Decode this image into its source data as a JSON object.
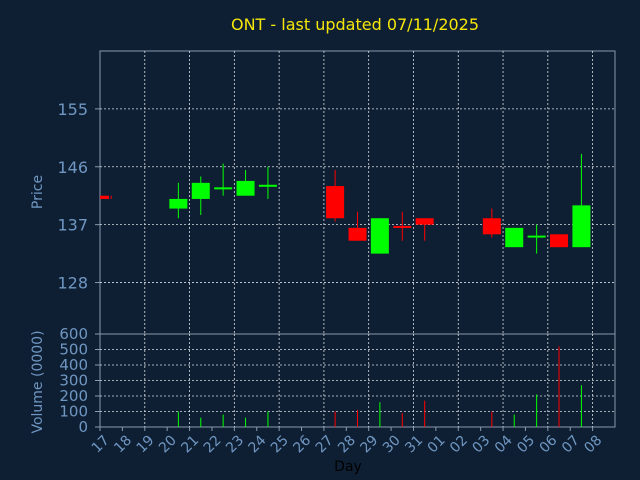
{
  "chart_data": [
    {
      "type": "candlestick",
      "title": "ONT - last updated 07/11/2025",
      "ylabel": "Price",
      "ylim": [
        120,
        164
      ],
      "yticks": [
        128,
        137,
        146,
        155
      ],
      "x_categories": [
        "17",
        "18",
        "19",
        "20",
        "21",
        "22",
        "23",
        "24",
        "25",
        "26",
        "27",
        "28",
        "29",
        "30",
        "31",
        "01",
        "02",
        "03",
        "04",
        "05",
        "06",
        "07",
        "08"
      ],
      "up_color": "#00ff00",
      "down_color": "#ff0000",
      "grid": true,
      "candles": [
        {
          "x": "17",
          "open": 141.5,
          "close": 141.0,
          "high": 141.5,
          "low": 141.0
        },
        {
          "x": "20",
          "open": 139.5,
          "close": 141.0,
          "high": 143.5,
          "low": 138.0
        },
        {
          "x": "21",
          "open": 141.0,
          "close": 143.5,
          "high": 144.5,
          "low": 138.5
        },
        {
          "x": "22",
          "open": 142.5,
          "close": 142.8,
          "high": 146.5,
          "low": 141.5
        },
        {
          "x": "23",
          "open": 141.5,
          "close": 143.8,
          "high": 145.5,
          "low": 141.5
        },
        {
          "x": "24",
          "open": 143.0,
          "close": 143.2,
          "high": 146.0,
          "low": 141.0
        },
        {
          "x": "27",
          "open": 143.0,
          "close": 138.0,
          "high": 145.5,
          "low": 137.5
        },
        {
          "x": "28",
          "open": 136.5,
          "close": 134.5,
          "high": 139.0,
          "low": 134.5
        },
        {
          "x": "29",
          "open": 132.5,
          "close": 138.0,
          "high": 138.0,
          "low": 132.5
        },
        {
          "x": "30",
          "open": 136.8,
          "close": 136.5,
          "high": 139.0,
          "low": 134.5
        },
        {
          "x": "31",
          "open": 138.0,
          "close": 137.0,
          "high": 138.0,
          "low": 134.5
        },
        {
          "x": "03",
          "open": 138.0,
          "close": 135.5,
          "high": 139.5,
          "low": 135.0
        },
        {
          "x": "04",
          "open": 133.5,
          "close": 136.5,
          "high": 136.5,
          "low": 133.5
        },
        {
          "x": "05",
          "open": 135.0,
          "close": 135.3,
          "high": 137.0,
          "low": 132.5
        },
        {
          "x": "06",
          "open": 135.5,
          "close": 133.5,
          "high": 135.5,
          "low": 133.5
        },
        {
          "x": "07",
          "open": 133.5,
          "close": 140.0,
          "high": 148.0,
          "low": 133.5
        }
      ]
    },
    {
      "type": "bar",
      "ylabel": "Volume (0000)",
      "xlabel": "Day",
      "ylim": [
        0,
        600
      ],
      "yticks": [
        0,
        100,
        200,
        300,
        400,
        500,
        600
      ],
      "categories": [
        "17",
        "18",
        "19",
        "20",
        "21",
        "22",
        "23",
        "24",
        "25",
        "26",
        "27",
        "28",
        "29",
        "30",
        "31",
        "01",
        "02",
        "03",
        "04",
        "05",
        "06",
        "07",
        "08"
      ],
      "values": [
        0,
        0,
        0,
        100,
        60,
        80,
        60,
        100,
        0,
        0,
        100,
        110,
        160,
        90,
        170,
        0,
        0,
        100,
        80,
        210,
        520,
        270,
        0
      ],
      "colors": [
        "#00ff00",
        "#00ff00",
        "#00ff00",
        "#00ff00",
        "#00ff00",
        "#00ff00",
        "#00ff00",
        "#00ff00",
        "#00ff00",
        "#00ff00",
        "#ff0000",
        "#ff0000",
        "#00ff00",
        "#ff0000",
        "#ff0000",
        "#00ff00",
        "#00ff00",
        "#ff0000",
        "#00ff00",
        "#00ff00",
        "#ff0000",
        "#00ff00",
        "#00ff00"
      ]
    }
  ]
}
